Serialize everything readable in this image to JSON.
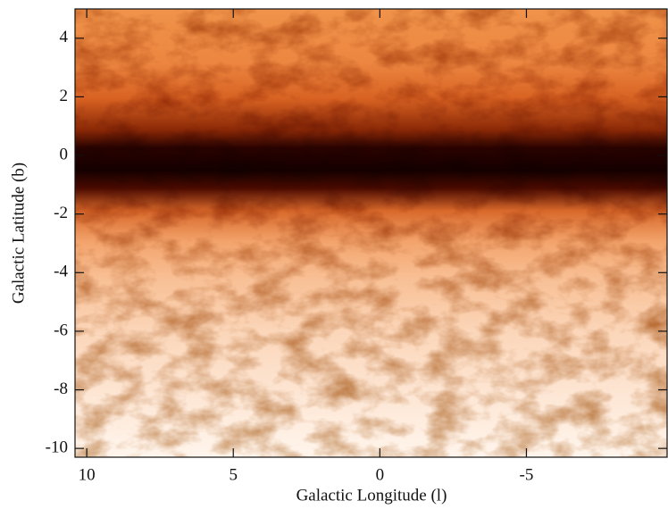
{
  "chart_data": {
    "type": "image",
    "x_label": "Galactic Longitude (l)",
    "y_label": "Galactic Latitude (b)",
    "xlim": [
      10.4,
      -9.8
    ],
    "xticks": [
      10,
      5,
      0,
      -5
    ],
    "ylim": [
      -10.3,
      5
    ],
    "yticks": [
      4,
      2,
      0,
      -2,
      -4,
      -6,
      -8,
      -10
    ]
  }
}
